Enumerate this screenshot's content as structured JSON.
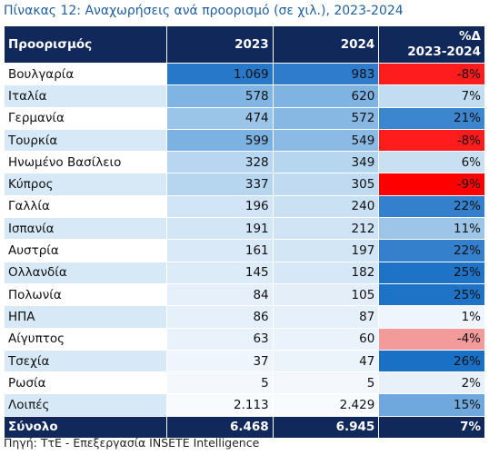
{
  "caption": "Πίνακας 12: Αναχωρήσεις ανά προορισμό (σε χιλ.), 2023-2024",
  "headers": {
    "destination": "Προορισμός",
    "y2023": "2023",
    "y2024": "2024",
    "pct_line1": "%Δ",
    "pct_line2": "2023-2024"
  },
  "rows": [
    {
      "name": "Βουλγαρία",
      "v2023": "1.069",
      "v2024": "983",
      "pct": "-8%",
      "c2023": "#2878c9",
      "c2024": "#2e7ccb",
      "cpct": "#ff1c1c"
    },
    {
      "name": "Ιταλία",
      "v2023": "578",
      "v2024": "620",
      "pct": "7%",
      "c2023": "#80b4e2",
      "c2024": "#7fb3e1",
      "cpct": "#c2dcf1"
    },
    {
      "name": "Γερμανία",
      "v2023": "474",
      "v2024": "572",
      "pct": "21%",
      "c2023": "#9ac4e8",
      "c2024": "#86b8e3",
      "cpct": "#3c86cf"
    },
    {
      "name": "Τουρκία",
      "v2023": "599",
      "v2024": "549",
      "pct": "-8%",
      "c2023": "#7cb2e1",
      "c2024": "#8bbbe5",
      "cpct": "#ff1c1c"
    },
    {
      "name": "Ηνωμένο Βασίλειο",
      "v2023": "328",
      "v2024": "349",
      "pct": "6%",
      "c2023": "#b8d6f0",
      "c2024": "#b6d5ef",
      "cpct": "#c9e0f3"
    },
    {
      "name": "Κύπρος",
      "v2023": "337",
      "v2024": "305",
      "pct": "-9%",
      "c2023": "#b6d5ef",
      "c2024": "#bfdaf1",
      "cpct": "#ff0000"
    },
    {
      "name": "Γαλλία",
      "v2023": "196",
      "v2024": "240",
      "pct": "22%",
      "c2023": "#d2e5f6",
      "c2024": "#cae1f4",
      "cpct": "#3480cc"
    },
    {
      "name": "Ισπανία",
      "v2023": "191",
      "v2024": "212",
      "pct": "11%",
      "c2023": "#d3e6f6",
      "c2024": "#d0e4f5",
      "cpct": "#9cc5e8"
    },
    {
      "name": "Αυστρία",
      "v2023": "161",
      "v2024": "197",
      "pct": "22%",
      "c2023": "#d9e9f7",
      "c2024": "#d3e6f6",
      "cpct": "#3480cc"
    },
    {
      "name": "Ολλανδία",
      "v2023": "145",
      "v2024": "182",
      "pct": "25%",
      "c2023": "#dcebf8",
      "c2024": "#d6e7f7",
      "cpct": "#1f73c6"
    },
    {
      "name": "Πολωνία",
      "v2023": "84",
      "v2024": "105",
      "pct": "25%",
      "c2023": "#e6f0fa",
      "c2024": "#e3eef9",
      "cpct": "#1f73c6"
    },
    {
      "name": "ΗΠΑ",
      "v2023": "86",
      "v2024": "87",
      "pct": "1%",
      "c2023": "#e5f0fa",
      "c2024": "#e6f0fa",
      "cpct": "#eef5fc"
    },
    {
      "name": "Αίγυπτος",
      "v2023": "63",
      "v2024": "60",
      "pct": "-4%",
      "c2023": "#e9f2fb",
      "c2024": "#eaf3fb",
      "cpct": "#f39a9a"
    },
    {
      "name": "Τσεχία",
      "v2023": "37",
      "v2024": "47",
      "pct": "26%",
      "c2023": "#eef5fc",
      "c2024": "#ecf4fb",
      "cpct": "#1a70c5"
    },
    {
      "name": "Ρωσία",
      "v2023": "5",
      "v2024": "5",
      "pct": "2%",
      "c2023": "#f4f8fd",
      "c2024": "#f4f8fd",
      "cpct": "#e8f1fa"
    },
    {
      "name": "Λοιπές",
      "v2023": "2.113",
      "v2024": "2.429",
      "pct": "15%",
      "c2023": "#f8fbfe",
      "c2024": "#f8fbfe",
      "cpct": "#6fa8dd"
    }
  ],
  "total": {
    "name": "Σύνολο",
    "v2023": "6.468",
    "v2024": "6.945",
    "pct": "7%"
  },
  "source": "Πηγή: ΤτΕ - Επεξεργασία INSETE Intelligence"
}
